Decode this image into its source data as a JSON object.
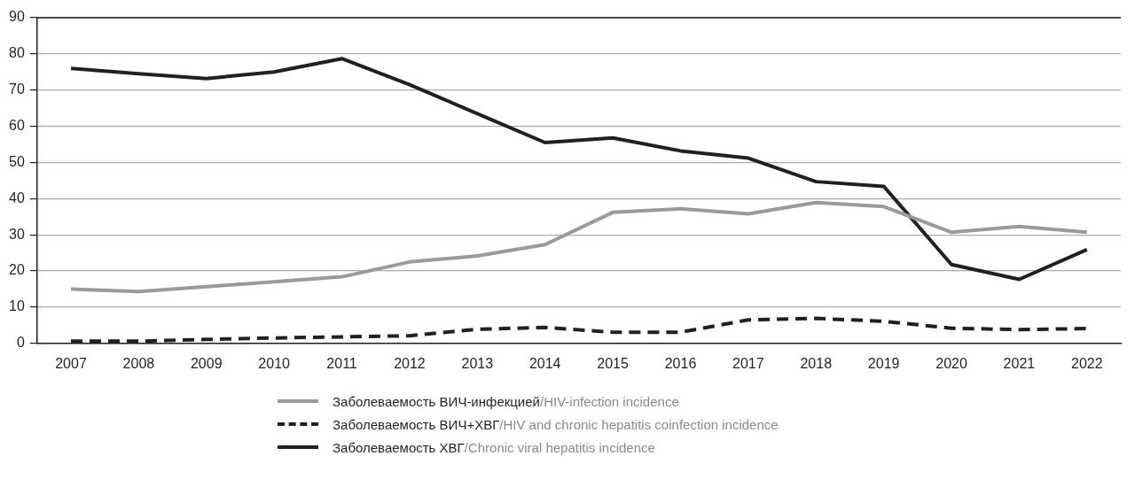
{
  "chart_data": {
    "type": "line",
    "categories": [
      "2007",
      "2008",
      "2009",
      "2010",
      "2011",
      "2012",
      "2013",
      "2014",
      "2015",
      "2016",
      "2017",
      "2018",
      "2019",
      "2020",
      "2021",
      "2022"
    ],
    "series": [
      {
        "name": "Заболеваемость ВИЧ-инфекцией/HIV-infection incidence",
        "color": "#9a9a9c",
        "line_style": "solid",
        "values": [
          15,
          14.3,
          15.7,
          17,
          18.4,
          22.5,
          24.2,
          27.3,
          36.2,
          37.2,
          35.8,
          38.9,
          37.8,
          30.7,
          32.3,
          30.7
        ]
      },
      {
        "name": "Заболеваемость ВИЧ+ХВГ/HIV and chronic hepatitis coinfection incidence",
        "color": "#231f20",
        "line_style": "dashed",
        "values": [
          0.6,
          0.6,
          1.1,
          1.5,
          1.8,
          2.1,
          3.9,
          4.4,
          3.1,
          3.1,
          6.5,
          6.9,
          6.1,
          4.2,
          3.8,
          4.1
        ]
      },
      {
        "name": "Заболеваемость ХВГ/Chronic viral hepatitis incidence",
        "color": "#231f20",
        "line_style": "solid",
        "values": [
          76,
          74.5,
          73.2,
          75,
          78.7,
          71.5,
          63.5,
          55.5,
          56.8,
          53.2,
          51.2,
          44.7,
          43.4,
          21.8,
          17.7,
          25.9
        ]
      }
    ],
    "ylim": [
      0,
      90
    ],
    "yticks": [
      0,
      10,
      20,
      30,
      40,
      50,
      60,
      70,
      80,
      90
    ],
    "grid": "y",
    "legend": "bottom",
    "marker": "none"
  }
}
